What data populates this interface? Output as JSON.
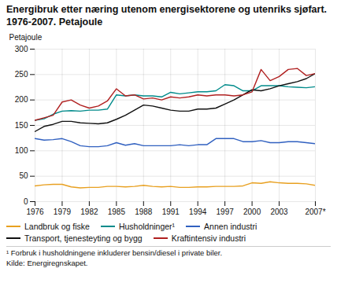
{
  "chart_data": {
    "type": "line",
    "title": "Energibruk etter næring utenom energisektorene og utenriks sjøfart. 1976-2007. Petajoule",
    "y_label": "Petajoule",
    "annotations": [
      "¹ Forbruk i husholdningene inkluderer bensin/diesel i private biler.",
      "Kilde: Energiregnskapet."
    ],
    "x": [
      1976,
      1977,
      1978,
      1979,
      1980,
      1981,
      1982,
      1983,
      1984,
      1985,
      1986,
      1987,
      1988,
      1989,
      1990,
      1991,
      1992,
      1993,
      1994,
      1995,
      1996,
      1997,
      1998,
      1999,
      2000,
      2001,
      2002,
      2003,
      2004,
      2005,
      2006,
      2007
    ],
    "series": [
      {
        "name": "Landbruk og fiske",
        "color": "#e8a020",
        "values": [
          31,
          33,
          34,
          34,
          29,
          27,
          28,
          28,
          30,
          30,
          29,
          30,
          32,
          30,
          29,
          30,
          28,
          28,
          29,
          29,
          30,
          30,
          30,
          31,
          37,
          36,
          39,
          37,
          36,
          36,
          35,
          32
        ]
      },
      {
        "name": "Husholdninger¹",
        "color": "#008b8b",
        "values": [
          160,
          163,
          172,
          178,
          179,
          178,
          180,
          180,
          182,
          210,
          208,
          210,
          208,
          208,
          206,
          215,
          212,
          214,
          216,
          216,
          218,
          230,
          228,
          218,
          218,
          228,
          228,
          228,
          226,
          225,
          224,
          226
        ]
      },
      {
        "name": "Annen industri",
        "color": "#3060c0",
        "values": [
          124,
          121,
          122,
          124,
          118,
          110,
          108,
          108,
          110,
          116,
          111,
          114,
          110,
          110,
          110,
          110,
          112,
          110,
          112,
          112,
          124,
          124,
          124,
          118,
          118,
          120,
          116,
          116,
          118,
          118,
          116,
          114
        ]
      },
      {
        "name": "Transport, tjenesteyting og bygg",
        "color": "#101010",
        "values": [
          138,
          148,
          152,
          158,
          158,
          155,
          154,
          153,
          155,
          162,
          170,
          180,
          190,
          188,
          184,
          180,
          178,
          178,
          182,
          182,
          184,
          192,
          200,
          210,
          220,
          218,
          222,
          228,
          232,
          236,
          242,
          252
        ]
      },
      {
        "name": "Kraftintensiv industri",
        "color": "#b02020",
        "values": [
          160,
          165,
          170,
          196,
          200,
          190,
          184,
          188,
          198,
          222,
          208,
          210,
          202,
          204,
          200,
          206,
          204,
          206,
          210,
          208,
          210,
          210,
          208,
          210,
          216,
          260,
          238,
          246,
          260,
          262,
          248,
          252
        ]
      }
    ],
    "xlim": [
      1976,
      2007
    ],
    "xticks": [
      1976,
      1979,
      1982,
      1985,
      1988,
      1991,
      1994,
      1997,
      2000,
      2003,
      {
        "value": 2007,
        "label": "2007*"
      }
    ],
    "ylim": [
      0,
      300
    ],
    "yticks": [
      0,
      50,
      100,
      150,
      200,
      250,
      300
    ],
    "grid": true,
    "legend": "bottom"
  }
}
